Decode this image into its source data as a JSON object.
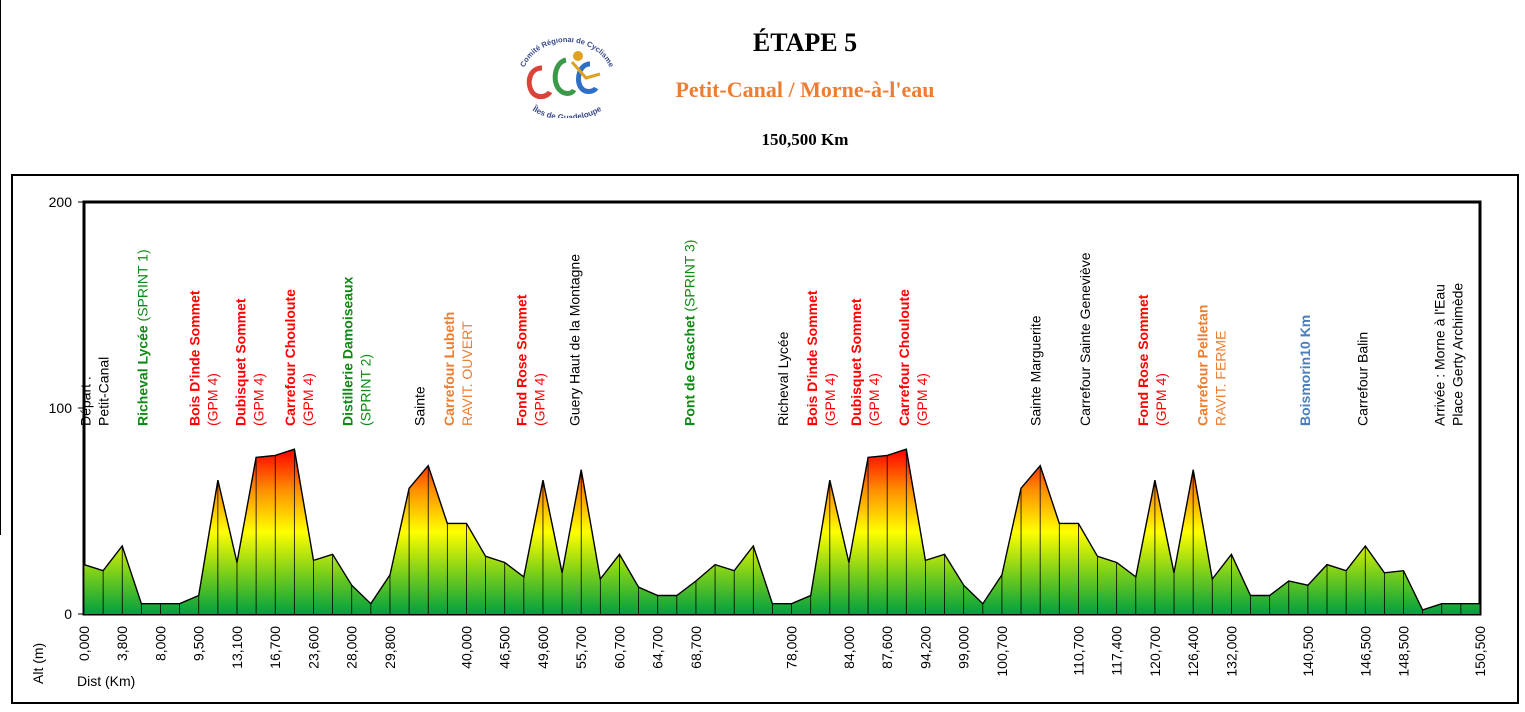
{
  "header": {
    "title": "ÉTAPE 5",
    "route": "Petit-Canal / Morne-à-l'eau",
    "distance": "150,500 Km",
    "logo_text": "Comité Régional de Cyclisme Îles de Guadeloupe"
  },
  "chart_data": {
    "type": "area",
    "ylabel": "Alt (m)",
    "xlabel": "Dist (Km)",
    "ylim": [
      0,
      200
    ],
    "yticks": [
      0,
      100,
      200
    ],
    "grid": false,
    "gradient_colors": [
      "#00a040",
      "#7ccf1a",
      "#ffff00",
      "#ff9000",
      "#ff0000"
    ],
    "profile": [
      [
        0,
        24
      ],
      [
        2,
        21
      ],
      [
        4,
        33
      ],
      [
        6,
        5
      ],
      [
        8,
        5
      ],
      [
        10,
        5
      ],
      [
        12,
        9
      ],
      [
        14,
        65
      ],
      [
        16,
        25
      ],
      [
        18,
        76
      ],
      [
        20,
        77
      ],
      [
        22,
        80
      ],
      [
        24,
        26
      ],
      [
        26,
        29
      ],
      [
        28,
        14
      ],
      [
        30,
        5
      ],
      [
        32,
        19
      ],
      [
        34,
        61
      ],
      [
        36,
        72
      ],
      [
        38,
        44
      ],
      [
        40,
        44
      ],
      [
        42,
        28
      ],
      [
        44,
        25
      ],
      [
        46,
        18
      ],
      [
        48,
        65
      ],
      [
        50,
        20
      ],
      [
        52,
        70
      ],
      [
        54,
        17
      ],
      [
        56,
        29
      ],
      [
        58,
        13
      ],
      [
        60,
        9
      ],
      [
        62,
        9
      ],
      [
        64,
        16
      ],
      [
        66,
        24
      ],
      [
        68,
        21
      ],
      [
        70,
        33
      ],
      [
        72,
        5
      ],
      [
        74,
        5
      ],
      [
        76,
        9
      ],
      [
        78,
        65
      ],
      [
        80,
        25
      ],
      [
        82,
        76
      ],
      [
        84,
        77
      ],
      [
        86,
        80
      ],
      [
        88,
        26
      ],
      [
        90,
        29
      ],
      [
        92,
        14
      ],
      [
        94,
        5
      ],
      [
        96,
        19
      ],
      [
        98,
        61
      ],
      [
        100,
        72
      ],
      [
        102,
        44
      ],
      [
        104,
        44
      ],
      [
        106,
        28
      ],
      [
        108,
        25
      ],
      [
        110,
        18
      ],
      [
        112,
        65
      ],
      [
        114,
        20
      ],
      [
        116,
        70
      ],
      [
        118,
        17
      ],
      [
        120,
        29
      ],
      [
        122,
        9
      ],
      [
        124,
        9
      ],
      [
        126,
        16
      ],
      [
        128,
        14
      ],
      [
        130,
        24
      ],
      [
        132,
        21
      ],
      [
        134,
        33
      ],
      [
        136,
        20
      ],
      [
        138,
        21
      ],
      [
        140,
        2
      ],
      [
        142,
        5
      ],
      [
        144,
        5
      ],
      [
        146,
        5
      ]
    ],
    "tick_labels": [
      {
        "pos": 0,
        "label": "0,000"
      },
      {
        "pos": 2,
        "label": "3,800"
      },
      {
        "pos": 4,
        "label": "8,000"
      },
      {
        "pos": 6,
        "label": "9,500"
      },
      {
        "pos": 8,
        "label": "13,100"
      },
      {
        "pos": 10,
        "label": "16,700"
      },
      {
        "pos": 12,
        "label": "23,600"
      },
      {
        "pos": 14,
        "label": "28,000"
      },
      {
        "pos": 16,
        "label": "29,800"
      },
      {
        "pos": 20,
        "label": "40,000"
      },
      {
        "pos": 22,
        "label": "46,500"
      },
      {
        "pos": 24,
        "label": "49,600"
      },
      {
        "pos": 26,
        "label": "55,700"
      },
      {
        "pos": 28,
        "label": "60,700"
      },
      {
        "pos": 30,
        "label": "64,700"
      },
      {
        "pos": 32,
        "label": "68,700"
      },
      {
        "pos": 37,
        "label": "78,000"
      },
      {
        "pos": 40,
        "label": "84,000"
      },
      {
        "pos": 42,
        "label": "87,600"
      },
      {
        "pos": 44,
        "label": "94,200"
      },
      {
        "pos": 46,
        "label": "99,000"
      },
      {
        "pos": 48,
        "label": "100,700"
      },
      {
        "pos": 52,
        "label": "110,700"
      },
      {
        "pos": 54,
        "label": "117,400"
      },
      {
        "pos": 56,
        "label": "120,700"
      },
      {
        "pos": 58,
        "label": "126,400"
      },
      {
        "pos": 60,
        "label": "132,000"
      },
      {
        "pos": 64,
        "label": "140,500"
      },
      {
        "pos": 67,
        "label": "146,500"
      },
      {
        "pos": 69,
        "label": "148,500"
      },
      {
        "pos": 73,
        "label": "150,500"
      }
    ],
    "annotations": [
      {
        "pos": 0.5,
        "lines": [
          [
            {
              "t": "Départ :",
              "c": "#000000",
              "b": false
            }
          ],
          [
            {
              "t": "Petit-Canal",
              "c": "#000000",
              "b": false
            }
          ]
        ]
      },
      {
        "pos": 3,
        "lines": [
          [
            {
              "t": "Richeval Lycée ",
              "c": "#0f8a14",
              "b": true
            },
            {
              "t": "(SPRINT 1)",
              "c": "#0f8a14",
              "b": false
            }
          ]
        ]
      },
      {
        "pos": 6.2,
        "lines": [
          [
            {
              "t": "Bois D'inde Sommet",
              "c": "#ff0000",
              "b": true
            }
          ],
          [
            {
              "t": "(GPM 4)",
              "c": "#ff0000",
              "b": false
            }
          ]
        ]
      },
      {
        "pos": 8.6,
        "lines": [
          [
            {
              "t": "Dubisquet Sommet",
              "c": "#ff0000",
              "b": true
            }
          ],
          [
            {
              "t": "(GPM 4)",
              "c": "#ff0000",
              "b": false
            }
          ]
        ]
      },
      {
        "pos": 11.2,
        "lines": [
          [
            {
              "t": "Carrefour Chouloute",
              "c": "#ff0000",
              "b": true
            }
          ],
          [
            {
              "t": "(GPM 4)",
              "c": "#ff0000",
              "b": false
            }
          ]
        ]
      },
      {
        "pos": 14.2,
        "lines": [
          [
            {
              "t": "Distillerie Damoiseaux",
              "c": "#0f8a14",
              "b": true
            }
          ],
          [
            {
              "t": "(SPRINT 2)",
              "c": "#0f8a14",
              "b": false
            }
          ]
        ]
      },
      {
        "pos": 17.5,
        "lines": [
          [
            {
              "t": "Sainte",
              "c": "#000000",
              "b": false
            }
          ]
        ]
      },
      {
        "pos": 19.5,
        "lines": [
          [
            {
              "t": "Carrefour Lubeth",
              "c": "#ed7d31",
              "b": true
            }
          ],
          [
            {
              "t": "RAVIT. OUVERT",
              "c": "#ed7d31",
              "b": false
            }
          ]
        ]
      },
      {
        "pos": 23.3,
        "lines": [
          [
            {
              "t": "Fond Rose Sommet",
              "c": "#ff0000",
              "b": true
            }
          ],
          [
            {
              "t": "(GPM 4)",
              "c": "#ff0000",
              "b": false
            }
          ]
        ]
      },
      {
        "pos": 25.6,
        "lines": [
          [
            {
              "t": "Guery Haut de la Montagne",
              "c": "#000000",
              "b": false
            }
          ]
        ]
      },
      {
        "pos": 31.6,
        "lines": [
          [
            {
              "t": "Pont de Gaschet ",
              "c": "#0f8a14",
              "b": true
            },
            {
              "t": "(SPRINT 3)",
              "c": "#0f8a14",
              "b": false
            }
          ]
        ]
      },
      {
        "pos": 36.5,
        "lines": [
          [
            {
              "t": "Richeval Lycée",
              "c": "#000000",
              "b": false
            }
          ]
        ]
      },
      {
        "pos": 38.5,
        "lines": [
          [
            {
              "t": "Bois D'inde Sommet",
              "c": "#ff0000",
              "b": true
            }
          ],
          [
            {
              "t": "(GPM 4)",
              "c": "#ff0000",
              "b": false
            }
          ]
        ]
      },
      {
        "pos": 40.8,
        "lines": [
          [
            {
              "t": "Dubisquet Sommet",
              "c": "#ff0000",
              "b": true
            }
          ],
          [
            {
              "t": "(GPM 4)",
              "c": "#ff0000",
              "b": false
            }
          ]
        ]
      },
      {
        "pos": 43.3,
        "lines": [
          [
            {
              "t": "Carrefour Chouloute",
              "c": "#ff0000",
              "b": true
            }
          ],
          [
            {
              "t": "(GPM 4)",
              "c": "#ff0000",
              "b": false
            }
          ]
        ]
      },
      {
        "pos": 49.7,
        "lines": [
          [
            {
              "t": "Sainte Marguerite",
              "c": "#000000",
              "b": false
            }
          ]
        ]
      },
      {
        "pos": 52.3,
        "lines": [
          [
            {
              "t": "Carrefour Sainte Geneviève",
              "c": "#000000",
              "b": false
            }
          ]
        ]
      },
      {
        "pos": 55.8,
        "lines": [
          [
            {
              "t": "Fond Rose Sommet",
              "c": "#ff0000",
              "b": true
            }
          ],
          [
            {
              "t": "(GPM 4)",
              "c": "#ff0000",
              "b": false
            }
          ]
        ]
      },
      {
        "pos": 58.9,
        "lines": [
          [
            {
              "t": "Carrefour Pelletan",
              "c": "#ed7d31",
              "b": true
            }
          ],
          [
            {
              "t": "RAVIT. FERME",
              "c": "#ed7d31",
              "b": false
            }
          ]
        ]
      },
      {
        "pos": 63.8,
        "lines": [
          [
            {
              "t": "Boismorin10 Km",
              "c": "#4a7ebb",
              "b": true
            }
          ]
        ]
      },
      {
        "pos": 66.8,
        "lines": [
          [
            {
              "t": "Carrefour Balin",
              "c": "#000000",
              "b": false
            }
          ]
        ]
      },
      {
        "pos": 71.3,
        "lines": [
          [
            {
              "t": "Arrivée : Morne à l'Eau",
              "c": "#000000",
              "b": false
            }
          ],
          [
            {
              "t": "Place Gerty Archimède",
              "c": "#000000",
              "b": false
            }
          ]
        ]
      }
    ]
  }
}
